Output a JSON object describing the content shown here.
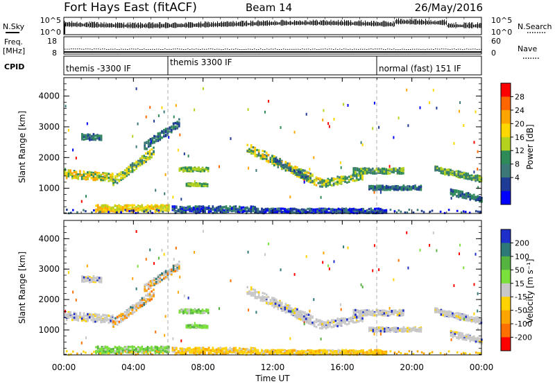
{
  "header": {
    "title": "Fort Hays East (fitACF)",
    "beam": "Beam 14",
    "date": "26/May/2016"
  },
  "noise_panel": {
    "left_label": "N.Sky",
    "right_label": "N.Search",
    "left_ticks": [
      "10^5",
      "10^0"
    ],
    "right_ticks": [
      "10^5",
      "10^0"
    ]
  },
  "freq_panel": {
    "left_label_1": "Freq.",
    "left_label_2": "[MHz]",
    "right_label": "Nave",
    "left_ticks": [
      "18",
      "8"
    ],
    "right_ticks": [
      "60",
      "0"
    ]
  },
  "cpid_panel": {
    "label": "CPID",
    "modes": [
      {
        "name": "themis -3300 IF",
        "start_hour": 0
      },
      {
        "name": "themis 3300 IF",
        "start_hour": 6
      },
      {
        "name": "normal (fast) 151 IF",
        "start_hour": 18
      }
    ]
  },
  "time_axis": {
    "label": "Time UT",
    "ticks": [
      "00:00",
      "04:00",
      "08:00",
      "12:00",
      "16:00",
      "20:00",
      "00:00"
    ]
  },
  "chart_data": [
    {
      "type": "heatmap",
      "name": "power",
      "ylabel": "Slant Range [km]",
      "ylim": [
        180,
        4600
      ],
      "xlim_hours": [
        0,
        24
      ],
      "yticks": [
        "1000",
        "2000",
        "3000",
        "4000"
      ],
      "colorbar_label": "Power [dB]",
      "colorbar_ticks": [
        "28",
        "24",
        "20",
        "16",
        "12",
        "8",
        "4"
      ],
      "colorbar_colors": [
        "#ff0000",
        "#ff6600",
        "#ffa500",
        "#ffd700",
        "#b4d21e",
        "#2e8b57",
        "#3c7878",
        "#1e3c96",
        "#0000ff"
      ]
    },
    {
      "type": "heatmap",
      "name": "velocity",
      "ylabel": "Slant Range [km]",
      "ylim": [
        180,
        4600
      ],
      "xlim_hours": [
        0,
        24
      ],
      "yticks": [
        "1000",
        "2000",
        "3000",
        "4000"
      ],
      "colorbar_label": "Velocity [m s⁻¹]",
      "colorbar_ticks": [
        "200",
        "100",
        "50",
        "15",
        "-15",
        "-50",
        "-100",
        "-200"
      ],
      "colorbar_colors": [
        "#1e2ec8",
        "#2e7878",
        "#55b440",
        "#7ce03c",
        "#c8c8c8",
        "#ffd200",
        "#ffa500",
        "#ff7000",
        "#ff0000"
      ]
    }
  ]
}
